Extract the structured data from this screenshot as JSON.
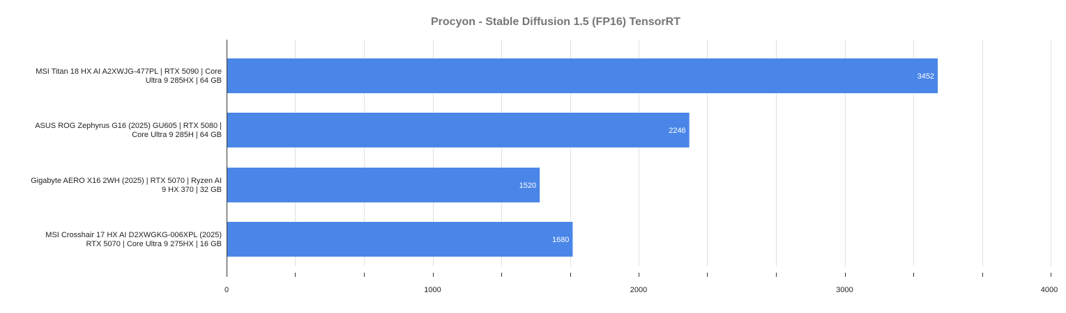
{
  "chart_data": {
    "type": "bar",
    "orientation": "horizontal",
    "title": "Procyon - Stable Diffusion 1.5 (FP16) TensorRT",
    "categories": [
      [
        "MSI Titan 18 HX AI A2XWJG-477PL | RTX 5090 | Core",
        "Ultra 9 285HX | 64 GB"
      ],
      [
        "ASUS ROG Zephyrus G16 (2025) GU605 | RTX 5080 |",
        "Core Ultra 9 285H | 64 GB"
      ],
      [
        "Gigabyte AERO X16 2WH (2025) | RTX 5070 | Ryzen AI",
        "9 HX 370 | 32 GB"
      ],
      [
        "MSI Crosshair 17 HX AI D2XWGKG-006XPL (2025)",
        "RTX 5070 | Core Ultra 9 275HX | 16 GB"
      ]
    ],
    "values": [
      3452,
      2246,
      1520,
      1680
    ],
    "data_labels": [
      "3452",
      "2246",
      "1520",
      "1680"
    ],
    "xlim": [
      0,
      4000
    ],
    "major_ticks": [
      0,
      1000,
      2000,
      3000,
      4000
    ],
    "tick_labels": [
      "0",
      "1000",
      "2000",
      "3000",
      "4000"
    ],
    "minor_ticks": [
      333.33,
      666.67,
      1333.33,
      1666.67,
      2333.33,
      2666.67,
      3333.33,
      3666.67
    ],
    "grid": true,
    "legend": "none",
    "colors": {
      "bar": "#4a86e8",
      "grid": "#e0e0e0",
      "axis": "#333333",
      "title": "#757575",
      "label": "#222222",
      "data_label": "#ffffff"
    }
  }
}
